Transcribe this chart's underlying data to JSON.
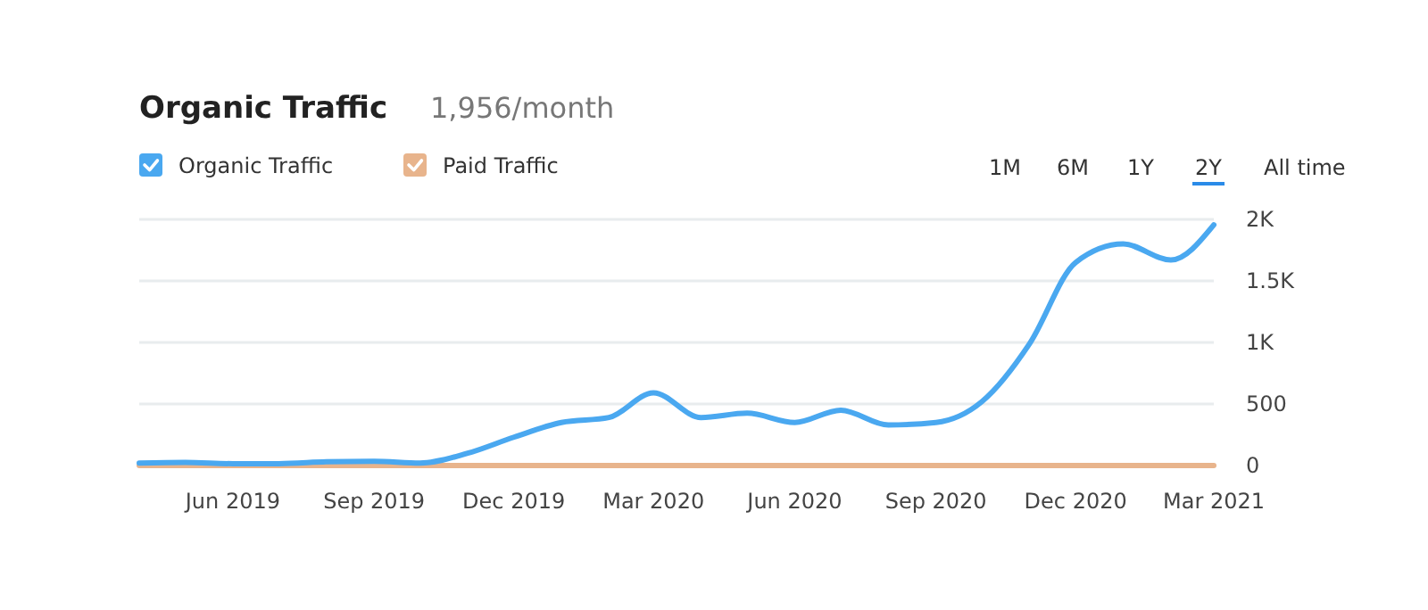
{
  "chart_data": {
    "type": "line",
    "title": "Organic Traffic",
    "subtitle": "1,956/month",
    "x": [
      "2019-04",
      "2019-05",
      "2019-06",
      "2019-07",
      "2019-08",
      "2019-09",
      "2019-10",
      "2019-11",
      "2019-12",
      "2020-01",
      "2020-02",
      "2020-03",
      "2020-04",
      "2020-05",
      "2020-06",
      "2020-07",
      "2020-08",
      "2020-09",
      "2020-10",
      "2020-11",
      "2020-12",
      "2021-01",
      "2021-02",
      "2021-03"
    ],
    "series": [
      {
        "name": "Organic Traffic",
        "color": "#4aa8f0",
        "values": [
          20,
          25,
          15,
          15,
          30,
          35,
          20,
          100,
          230,
          350,
          390,
          590,
          390,
          425,
          350,
          450,
          330,
          350,
          520,
          990,
          1650,
          1800,
          1670,
          1956
        ]
      },
      {
        "name": "Paid Traffic",
        "color": "#e8b48c",
        "values": [
          0,
          0,
          0,
          0,
          0,
          0,
          0,
          0,
          0,
          0,
          0,
          0,
          0,
          0,
          0,
          0,
          0,
          0,
          0,
          0,
          0,
          0,
          0,
          0
        ]
      }
    ],
    "xlim": [
      "2019-04",
      "2021-03"
    ],
    "xticks": [
      {
        "value": "2019-06",
        "label": "Jun 2019"
      },
      {
        "value": "2019-09",
        "label": "Sep 2019"
      },
      {
        "value": "2019-12",
        "label": "Dec 2019"
      },
      {
        "value": "2020-03",
        "label": "Mar 2020"
      },
      {
        "value": "2020-06",
        "label": "Jun 2020"
      },
      {
        "value": "2020-09",
        "label": "Sep 2020"
      },
      {
        "value": "2020-12",
        "label": "Dec 2020"
      },
      {
        "value": "2021-03",
        "label": "Mar 2021"
      }
    ],
    "ylim": [
      0,
      2000
    ],
    "yticks": [
      0,
      500,
      {
        "value": 1000,
        "label": "1K"
      },
      {
        "value": 1500,
        "label": "1.5K"
      },
      {
        "value": 2000,
        "label": "2K"
      }
    ],
    "grid": "y",
    "legend": "top left",
    "marker": "none",
    "line_style": "solid",
    "annotations": [
      "1M",
      "6M",
      "1Y",
      "2Y",
      "All time"
    ]
  }
}
